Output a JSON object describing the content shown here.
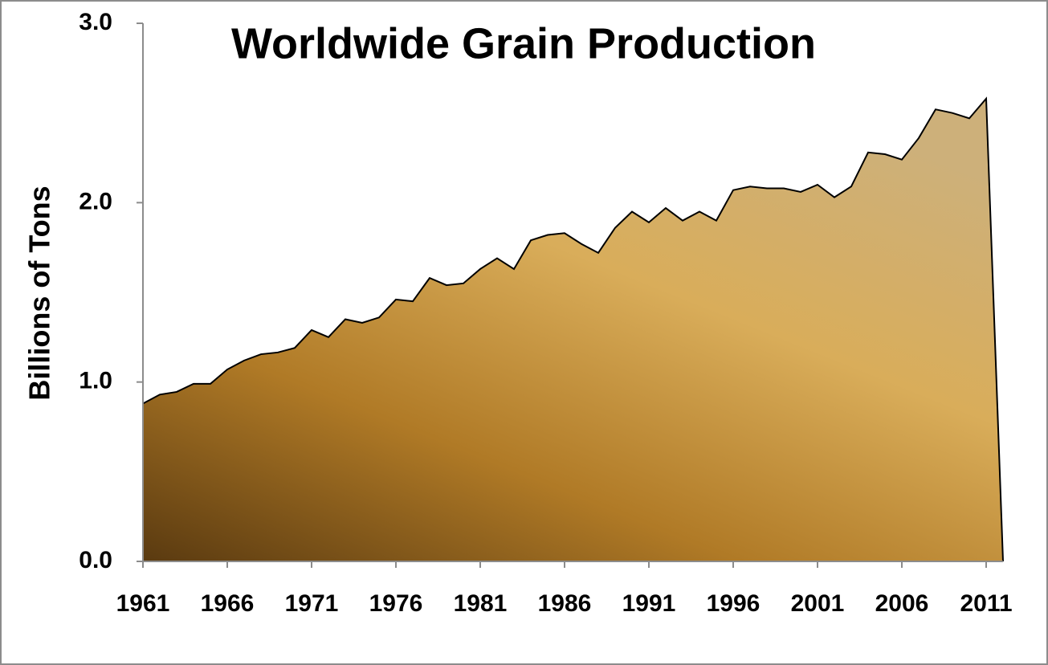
{
  "chart_data": {
    "type": "area",
    "title": "Worldwide Grain Production",
    "y_label": "Billions of Tons",
    "x": [
      1961,
      1962,
      1963,
      1964,
      1965,
      1966,
      1967,
      1968,
      1969,
      1970,
      1971,
      1972,
      1973,
      1974,
      1975,
      1976,
      1977,
      1978,
      1979,
      1980,
      1981,
      1982,
      1983,
      1984,
      1985,
      1986,
      1987,
      1988,
      1989,
      1990,
      1991,
      1992,
      1993,
      1994,
      1995,
      1996,
      1997,
      1998,
      1999,
      2000,
      2001,
      2002,
      2003,
      2004,
      2005,
      2006,
      2007,
      2008,
      2009,
      2010,
      2011,
      2012
    ],
    "values": [
      0.88,
      0.93,
      0.945,
      0.99,
      0.99,
      1.07,
      1.12,
      1.155,
      1.165,
      1.19,
      1.29,
      1.25,
      1.35,
      1.33,
      1.36,
      1.46,
      1.45,
      1.58,
      1.54,
      1.55,
      1.63,
      1.69,
      1.63,
      1.79,
      1.82,
      1.83,
      1.77,
      1.72,
      1.86,
      1.95,
      1.89,
      1.97,
      1.9,
      1.95,
      1.9,
      2.07,
      2.09,
      2.08,
      2.08,
      2.06,
      2.1,
      2.03,
      2.09,
      2.28,
      2.27,
      2.24,
      2.36,
      2.52,
      2.5,
      2.47,
      2.58,
      0
    ],
    "colors": [
      "#5a3a10",
      "#b07a26",
      "#d9ad5a",
      "#cdb07a"
    ],
    "xlim": [
      1961,
      2012
    ],
    "xticks": [
      1961,
      1966,
      1971,
      1976,
      1981,
      1986,
      1991,
      1996,
      2001,
      2006,
      2011
    ],
    "ylim": [
      0,
      3
    ],
    "yticks": [
      {
        "value": 0,
        "label": "0.0"
      },
      {
        "value": 1,
        "label": "1.0"
      },
      {
        "value": 2,
        "label": "2.0"
      },
      {
        "value": 3,
        "label": "3.0"
      }
    ]
  }
}
